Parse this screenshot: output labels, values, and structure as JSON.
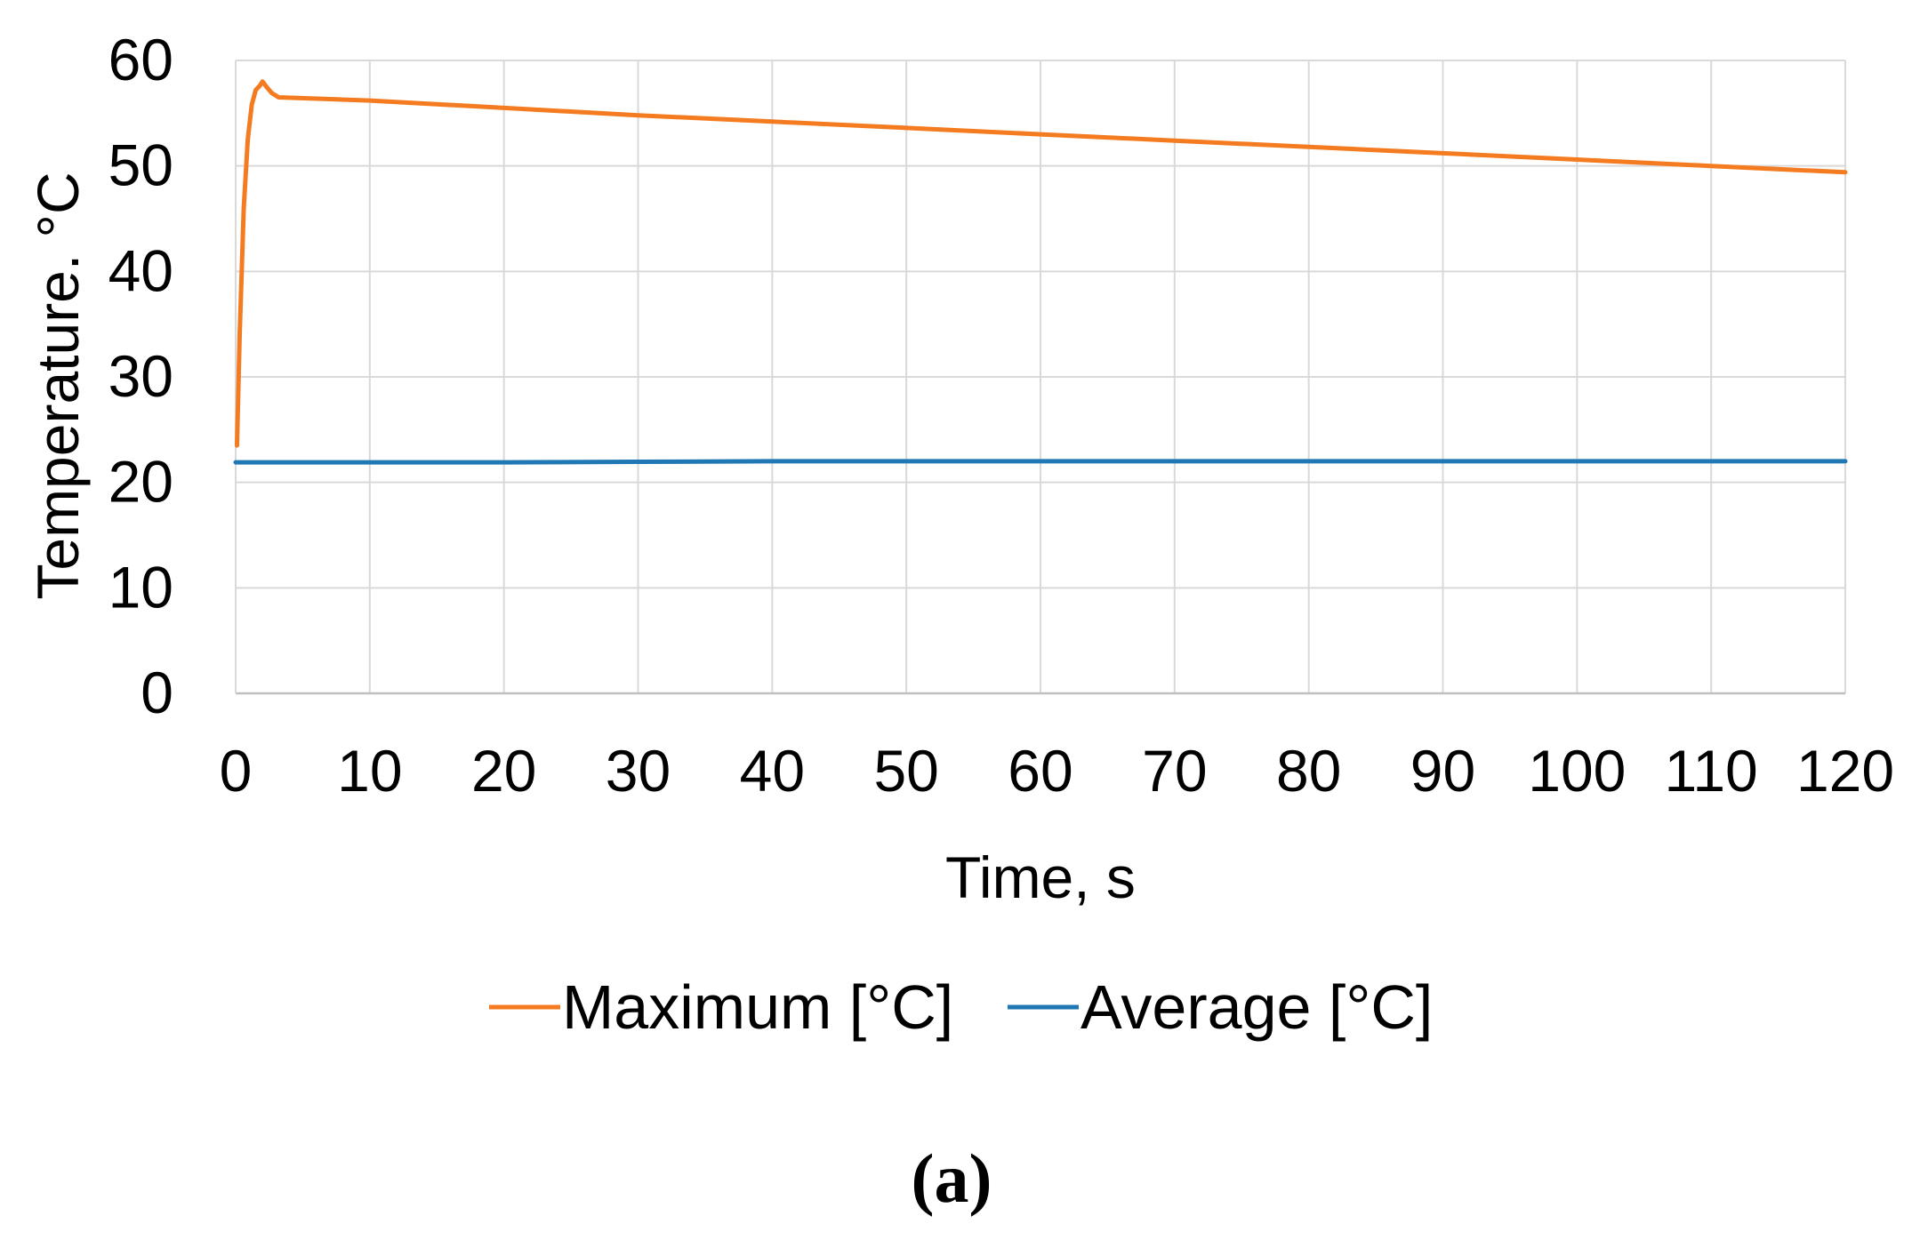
{
  "chart_data": {
    "type": "line",
    "title": "",
    "xlabel": "Time, s",
    "ylabel": "Temperature. °C",
    "xlim": [
      0,
      120
    ],
    "ylim": [
      0,
      60
    ],
    "xticks": [
      0,
      10,
      20,
      30,
      40,
      50,
      60,
      70,
      80,
      90,
      100,
      110,
      120
    ],
    "yticks": [
      0,
      10,
      20,
      30,
      40,
      50,
      60
    ],
    "xtick_labels": [
      "0",
      "10",
      "20",
      "30",
      "40",
      "50",
      "60",
      "70",
      "80",
      "90",
      "100",
      "110",
      "120"
    ],
    "ytick_labels": [
      "0",
      "10",
      "20",
      "30",
      "40",
      "50",
      "60"
    ],
    "grid": true,
    "legend_position": "bottom",
    "series": [
      {
        "name": "Maximum [°C]",
        "color": "#F47B20",
        "x": [
          0.1,
          0.3,
          0.6,
          0.9,
          1.2,
          1.5,
          1.8,
          2.0,
          2.3,
          2.7,
          3.2,
          10,
          20,
          30,
          40,
          50,
          60,
          70,
          80,
          90,
          100,
          110,
          120
        ],
        "y": [
          23.5,
          34,
          46,
          52.5,
          55.8,
          57.2,
          57.6,
          58.0,
          57.5,
          56.9,
          56.5,
          56.2,
          55.5,
          54.8,
          54.2,
          53.6,
          53.0,
          52.4,
          51.8,
          51.2,
          50.6,
          50.0,
          49.4
        ]
      },
      {
        "name": "Average [°C]",
        "color": "#1F77B4",
        "x": [
          0,
          10,
          20,
          30,
          40,
          50,
          60,
          70,
          80,
          90,
          100,
          110,
          120
        ],
        "y": [
          21.9,
          21.9,
          21.9,
          21.95,
          22.0,
          22.0,
          22.0,
          22.0,
          22.0,
          22.0,
          22.0,
          22.0,
          22.0
        ]
      }
    ],
    "caption": "(a)"
  }
}
